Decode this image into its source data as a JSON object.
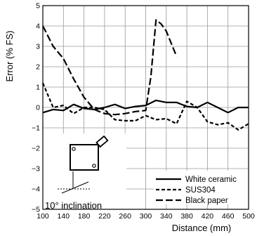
{
  "chart_data": {
    "type": "line",
    "xlabel": "Distance (mm)",
    "ylabel": "Error (% FS)",
    "xlim": [
      100,
      500
    ],
    "ylim": [
      -5,
      5
    ],
    "xticks": [
      100,
      140,
      180,
      220,
      260,
      300,
      340,
      380,
      420,
      460,
      500
    ],
    "xtick_labels": [
      "100",
      "140",
      "180",
      "220",
      "260",
      "300",
      "340",
      "380",
      "420",
      "460",
      "500"
    ],
    "yticks": [
      -5,
      -4,
      -3,
      -2,
      -1,
      0,
      1,
      2,
      3,
      4,
      5
    ],
    "ytick_labels": [
      "−5",
      "−4",
      "−3",
      "−2",
      "−1",
      "0",
      "1",
      "2",
      "3",
      "4",
      "5"
    ],
    "grid": true,
    "legend_position": "bottom-right",
    "series": [
      {
        "name": "White ceramic",
        "style": "solid",
        "x": [
          100,
          120,
          140,
          160,
          180,
          200,
          220,
          240,
          260,
          280,
          300,
          320,
          340,
          360,
          380,
          400,
          420,
          440,
          460,
          480,
          500
        ],
        "y": [
          -0.25,
          -0.1,
          -0.15,
          0.15,
          -0.05,
          -0.1,
          0.0,
          0.15,
          -0.05,
          0.05,
          0.1,
          0.35,
          0.25,
          0.25,
          0.05,
          0.0,
          0.25,
          0.0,
          -0.25,
          0.0,
          0.0
        ]
      },
      {
        "name": "SUS304",
        "style": "dashed",
        "x": [
          100,
          110,
          120,
          140,
          160,
          180,
          200,
          220,
          240,
          260,
          280,
          300,
          320,
          340,
          360,
          380,
          400,
          420,
          440,
          460,
          480,
          500
        ],
        "y": [
          1.2,
          0.6,
          0.0,
          0.1,
          -0.3,
          0.0,
          0.0,
          -0.1,
          -0.6,
          -0.65,
          -0.65,
          -0.4,
          -0.6,
          -0.55,
          -0.8,
          0.3,
          0.0,
          -0.7,
          -0.85,
          -0.75,
          -1.1,
          -0.8
        ]
      },
      {
        "name": "Black paper",
        "style": "longdash",
        "x": [
          100,
          120,
          140,
          160,
          180,
          200,
          220,
          240,
          260,
          280,
          300,
          310,
          320,
          330,
          340,
          360
        ],
        "y": [
          4.0,
          3.0,
          2.4,
          1.4,
          0.5,
          -0.1,
          -0.3,
          -0.35,
          -0.3,
          -0.2,
          -0.15,
          1.5,
          4.3,
          4.1,
          3.75,
          2.5
        ]
      }
    ],
    "annotation": "10° inclination"
  }
}
